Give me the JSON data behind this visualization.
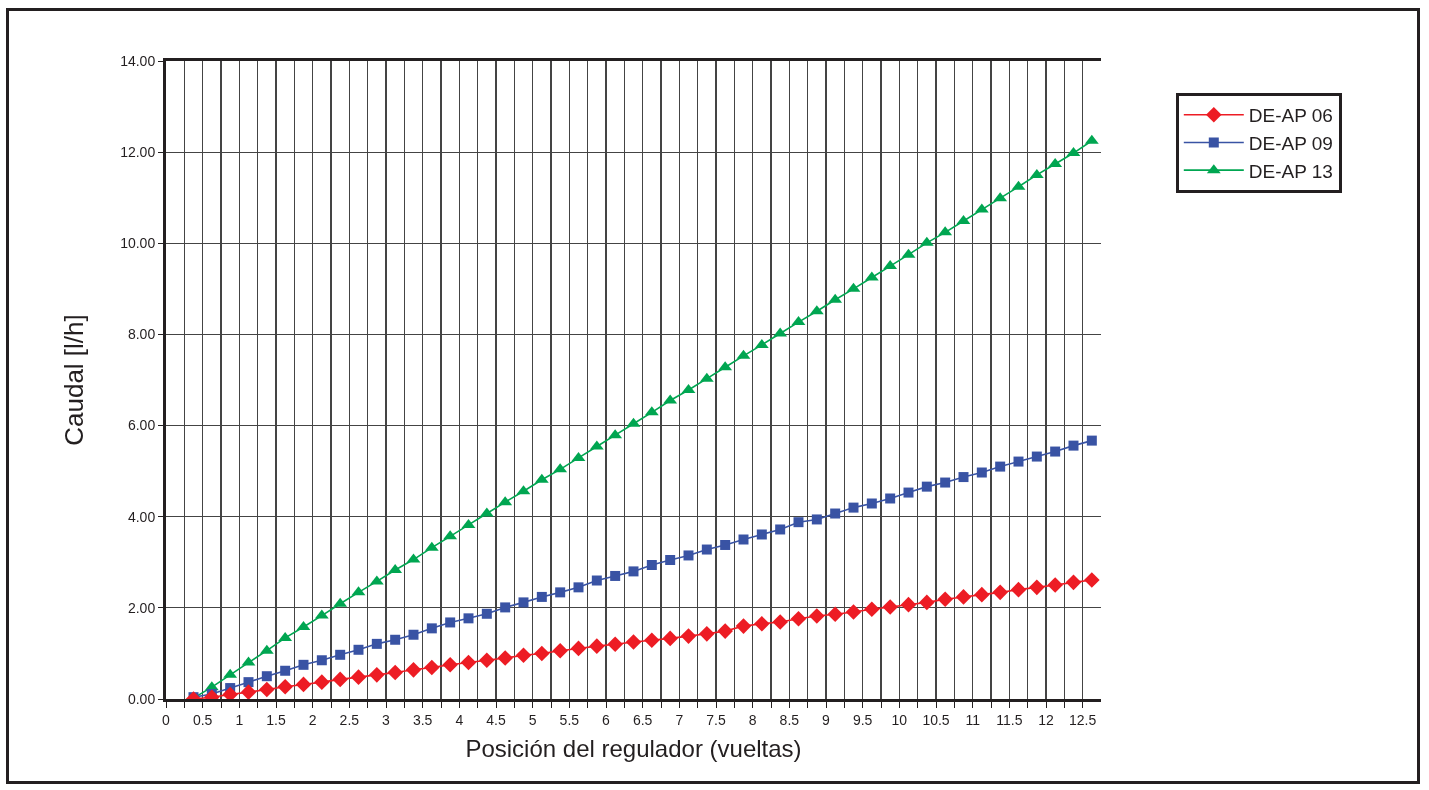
{
  "chart_data": {
    "type": "line",
    "xlabel": "Posición del regulador (vueltas)",
    "ylabel": "Caudal [l/h]",
    "x": [
      0.375,
      0.625,
      0.875,
      1.125,
      1.375,
      1.625,
      1.875,
      2.125,
      2.375,
      2.625,
      2.875,
      3.125,
      3.375,
      3.625,
      3.875,
      4.125,
      4.375,
      4.625,
      4.875,
      5.125,
      5.375,
      5.625,
      5.875,
      6.125,
      6.375,
      6.625,
      6.875,
      7.125,
      7.375,
      7.625,
      7.875,
      8.125,
      8.375,
      8.625,
      8.875,
      9.125,
      9.375,
      9.625,
      9.875,
      10.125,
      10.375,
      10.625,
      10.875,
      11.125,
      11.375,
      11.625,
      11.875,
      12.125,
      12.375,
      12.625
    ],
    "series": [
      {
        "name": "DE-AP 06",
        "color": "#ed1c24",
        "marker": "diamond",
        "values": [
          0.0,
          0.04,
          0.1,
          0.15,
          0.21,
          0.27,
          0.32,
          0.37,
          0.43,
          0.48,
          0.53,
          0.58,
          0.64,
          0.69,
          0.75,
          0.8,
          0.85,
          0.9,
          0.96,
          1.0,
          1.06,
          1.11,
          1.16,
          1.2,
          1.25,
          1.29,
          1.33,
          1.38,
          1.43,
          1.49,
          1.6,
          1.65,
          1.69,
          1.76,
          1.82,
          1.86,
          1.91,
          1.97,
          2.02,
          2.07,
          2.12,
          2.19,
          2.24,
          2.29,
          2.34,
          2.4,
          2.45,
          2.5,
          2.56,
          2.61
        ]
      },
      {
        "name": "DE-AP 09",
        "color": "#3953a4",
        "marker": "square",
        "values": [
          0.04,
          0.11,
          0.24,
          0.37,
          0.5,
          0.62,
          0.75,
          0.85,
          0.97,
          1.08,
          1.21,
          1.3,
          1.41,
          1.55,
          1.68,
          1.77,
          1.87,
          2.01,
          2.12,
          2.24,
          2.34,
          2.45,
          2.6,
          2.7,
          2.8,
          2.94,
          3.05,
          3.15,
          3.28,
          3.38,
          3.5,
          3.61,
          3.72,
          3.88,
          3.94,
          4.07,
          4.2,
          4.29,
          4.4,
          4.53,
          4.66,
          4.75,
          4.87,
          4.97,
          5.1,
          5.21,
          5.32,
          5.43,
          5.56,
          5.67
        ]
      },
      {
        "name": "DE-AP 13",
        "color": "#00a651",
        "marker": "triangle",
        "values": [
          0.02,
          0.26,
          0.53,
          0.8,
          1.06,
          1.34,
          1.58,
          1.83,
          2.09,
          2.34,
          2.58,
          2.83,
          3.06,
          3.32,
          3.57,
          3.82,
          4.07,
          4.32,
          4.56,
          4.81,
          5.04,
          5.29,
          5.54,
          5.79,
          6.04,
          6.29,
          6.55,
          6.78,
          7.03,
          7.28,
          7.53,
          7.77,
          8.02,
          8.27,
          8.51,
          8.76,
          9.0,
          9.25,
          9.5,
          9.75,
          10.01,
          10.24,
          10.49,
          10.74,
          10.99,
          11.24,
          11.5,
          11.74,
          11.98,
          12.25
        ]
      }
    ],
    "xlim": [
      0,
      12.75
    ],
    "xticks": [
      0,
      {
        "value": 0.25,
        "label": null
      },
      0.5,
      {
        "value": 0.75,
        "label": null
      },
      1,
      {
        "value": 1.25,
        "label": null
      },
      1.5,
      {
        "value": 1.75,
        "label": null
      },
      2,
      {
        "value": 2.25,
        "label": null
      },
      2.5,
      {
        "value": 2.75,
        "label": null
      },
      3,
      {
        "value": 3.25,
        "label": null
      },
      3.5,
      {
        "value": 3.75,
        "label": null
      },
      4,
      {
        "value": 4.25,
        "label": null
      },
      4.5,
      {
        "value": 4.75,
        "label": null
      },
      5,
      {
        "value": 5.25,
        "label": null
      },
      5.5,
      {
        "value": 5.75,
        "label": null
      },
      6,
      {
        "value": 6.25,
        "label": null
      },
      6.5,
      {
        "value": 6.75,
        "label": null
      },
      7,
      {
        "value": 7.25,
        "label": null
      },
      7.5,
      {
        "value": 7.75,
        "label": null
      },
      8,
      {
        "value": 8.25,
        "label": null
      },
      8.5,
      {
        "value": 8.75,
        "label": null
      },
      9,
      {
        "value": 9.25,
        "label": null
      },
      9.5,
      {
        "value": 9.75,
        "label": null
      },
      10,
      {
        "value": 10.25,
        "label": null
      },
      10.5,
      {
        "value": 10.75,
        "label": null
      },
      11,
      {
        "value": 11.25,
        "label": null
      },
      11.5,
      {
        "value": 11.75,
        "label": null
      },
      12,
      {
        "value": 12.25,
        "label": null
      },
      12.5
    ],
    "ylim": [
      0,
      14
    ],
    "yticks": [
      {
        "value": 0,
        "label": "0.00"
      },
      {
        "value": 2,
        "label": "2.00"
      },
      {
        "value": 4,
        "label": "4.00"
      },
      {
        "value": 6,
        "label": "6.00"
      },
      {
        "value": 8,
        "label": "8.00"
      },
      {
        "value": 10,
        "label": "10.00"
      },
      {
        "value": 12,
        "label": "12.00"
      },
      {
        "value": 14,
        "label": "14.00"
      }
    ],
    "grid": true,
    "legend": "top right",
    "line_style": "solid"
  }
}
